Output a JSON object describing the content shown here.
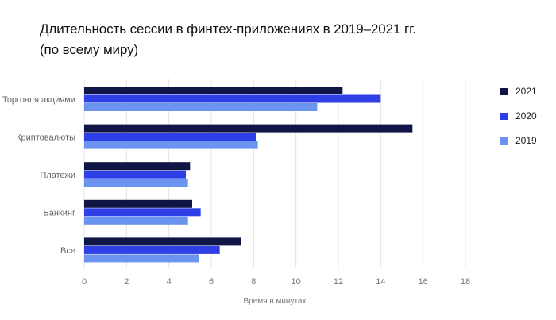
{
  "title_line1": "Длительность сессии в финтех-приложениях в 2019–2021 гг.",
  "title_line2": "(по всему миру)",
  "chart_data": {
    "type": "bar",
    "orientation": "horizontal",
    "categories": [
      "Торговля акциями",
      "Криптовалюты",
      "Платежи",
      "Банкинг",
      "Все"
    ],
    "series": [
      {
        "name": "2021",
        "color": "#0f1545",
        "values": [
          12.2,
          15.5,
          5.0,
          5.1,
          7.4
        ]
      },
      {
        "name": "2020",
        "color": "#2f3fe6",
        "values": [
          14.0,
          8.1,
          4.8,
          5.5,
          6.4
        ]
      },
      {
        "name": "2019",
        "color": "#6b93f0",
        "values": [
          11.0,
          8.2,
          4.9,
          4.9,
          5.4
        ]
      }
    ],
    "xlabel": "Время в минутах",
    "xlim": [
      0,
      18
    ],
    "xticks": [
      0,
      2,
      4,
      6,
      8,
      10,
      12,
      14,
      16,
      18
    ],
    "grid": "vertical",
    "legend": "right"
  }
}
